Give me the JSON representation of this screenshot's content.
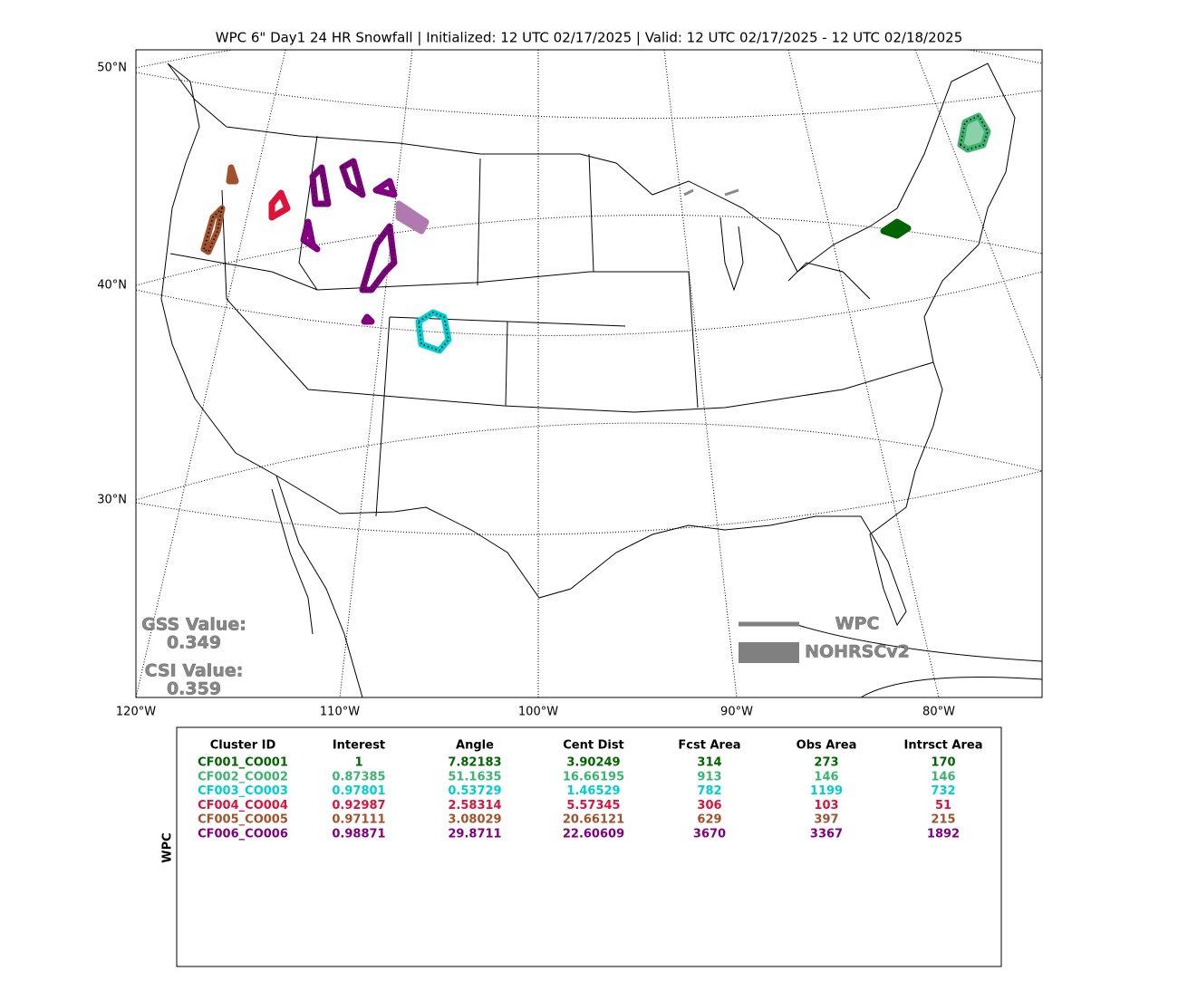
{
  "map": {
    "title": "WPC 6\" Day1 24 HR Snowfall | Initialized: 12 UTC 02/17/2025 | Valid: 12 UTC 02/17/2025 - 12 UTC 02/18/2025",
    "lat_labels": [
      "50°N",
      "40°N",
      "30°N"
    ],
    "lon_labels": [
      "120°W",
      "110°W",
      "100°W",
      "90°W",
      "80°W"
    ],
    "scores": [
      {
        "label": "GSS Value:",
        "value": "0.349"
      },
      {
        "label": "CSI Value:",
        "value": "0.359"
      }
    ],
    "legend": [
      "WPC",
      "NOHRSCv2"
    ]
  },
  "table": {
    "side_label": "WPC",
    "columns": [
      "Cluster ID",
      "Interest",
      "Angle",
      "Cent Dist",
      "Fcst Area",
      "Obs Area",
      "Intrsct Area"
    ],
    "rows": [
      {
        "color": "#006400",
        "cells": [
          "CF001_CO001",
          "1",
          "7.82183",
          "3.90249",
          "314",
          "273",
          "170"
        ]
      },
      {
        "color": "#3cb371",
        "cells": [
          "CF002_CO002",
          "0.87385",
          "51.1635",
          "16.66195",
          "913",
          "146",
          "146"
        ]
      },
      {
        "color": "#00ced1",
        "cells": [
          "CF003_CO003",
          "0.97801",
          "0.53729",
          "1.46529",
          "782",
          "1199",
          "732"
        ]
      },
      {
        "color": "#dc143c",
        "cells": [
          "CF004_CO004",
          "0.92987",
          "2.58314",
          "5.57345",
          "306",
          "103",
          "51"
        ]
      },
      {
        "color": "#a0522d",
        "cells": [
          "CF005_CO005",
          "0.97111",
          "3.08029",
          "20.66121",
          "629",
          "397",
          "215"
        ]
      },
      {
        "color": "#800080",
        "cells": [
          "CF006_CO006",
          "0.98871",
          "29.8711",
          "22.60609",
          "3670",
          "3367",
          "1892"
        ]
      }
    ]
  }
}
